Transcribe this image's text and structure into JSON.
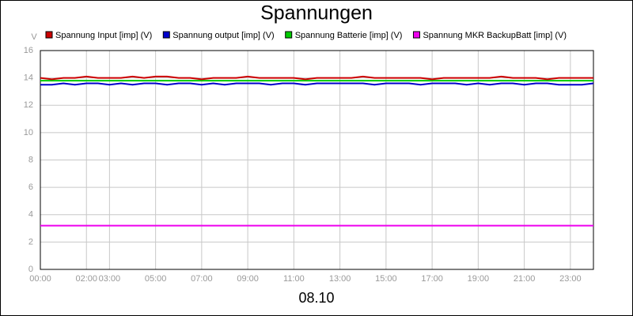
{
  "chart_data": {
    "type": "line",
    "title": "Spannungen",
    "ylabel": "V",
    "xlabel": "08.10",
    "x": [
      0,
      0.5,
      1,
      1.5,
      2,
      2.5,
      3,
      3.5,
      4,
      4.5,
      5,
      5.5,
      6,
      6.5,
      7,
      7.5,
      8,
      8.5,
      9,
      9.5,
      10,
      10.5,
      11,
      11.5,
      12,
      12.5,
      13,
      13.5,
      14,
      14.5,
      15,
      15.5,
      16,
      16.5,
      17,
      17.5,
      18,
      18.5,
      19,
      19.5,
      20,
      20.5,
      21,
      21.5,
      22,
      22.5,
      23,
      23.5,
      24
    ],
    "xlim": [
      0,
      24
    ],
    "xticks": [
      {
        "value": 0,
        "label": "00:00"
      },
      {
        "value": 2,
        "label": "02:00"
      },
      {
        "value": 3,
        "label": "03:00"
      },
      {
        "value": 5,
        "label": "05:00"
      },
      {
        "value": 7,
        "label": "07:00"
      },
      {
        "value": 9,
        "label": "09:00"
      },
      {
        "value": 11,
        "label": "11:00"
      },
      {
        "value": 13,
        "label": "13:00"
      },
      {
        "value": 15,
        "label": "15:00"
      },
      {
        "value": 17,
        "label": "17:00"
      },
      {
        "value": 19,
        "label": "19:00"
      },
      {
        "value": 21,
        "label": "21:00"
      },
      {
        "value": 23,
        "label": "23:00"
      }
    ],
    "ylim": [
      0,
      16
    ],
    "yticks": [
      0,
      2,
      4,
      6,
      8,
      10,
      12,
      14,
      16
    ],
    "grid": true,
    "legend": "top",
    "series": [
      {
        "name": "Spannung Input [imp] (V)",
        "color": "#cc0000",
        "values": [
          14.0,
          13.9,
          14.0,
          14.0,
          14.1,
          14.0,
          14.0,
          14.0,
          14.1,
          14.0,
          14.1,
          14.1,
          14.0,
          14.0,
          13.9,
          14.0,
          14.0,
          14.0,
          14.1,
          14.0,
          14.0,
          14.0,
          14.0,
          13.9,
          14.0,
          14.0,
          14.0,
          14.0,
          14.1,
          14.0,
          14.0,
          14.0,
          14.0,
          14.0,
          13.9,
          14.0,
          14.0,
          14.0,
          14.0,
          14.0,
          14.1,
          14.0,
          14.0,
          14.0,
          13.9,
          14.0,
          14.0,
          14.0,
          14.0
        ]
      },
      {
        "name": "Spannung output [imp] (V)",
        "color": "#0000cc",
        "values": [
          13.5,
          13.5,
          13.6,
          13.5,
          13.6,
          13.6,
          13.5,
          13.6,
          13.5,
          13.6,
          13.6,
          13.5,
          13.6,
          13.6,
          13.5,
          13.6,
          13.5,
          13.6,
          13.6,
          13.6,
          13.5,
          13.6,
          13.6,
          13.5,
          13.6,
          13.6,
          13.6,
          13.6,
          13.6,
          13.5,
          13.6,
          13.6,
          13.6,
          13.5,
          13.6,
          13.6,
          13.6,
          13.5,
          13.6,
          13.5,
          13.6,
          13.6,
          13.5,
          13.6,
          13.6,
          13.5,
          13.5,
          13.5,
          13.6
        ]
      },
      {
        "name": "Spannung Batterie [imp] (V)",
        "color": "#00cc00",
        "values": [
          13.8,
          13.8,
          13.8,
          13.8,
          13.8,
          13.8,
          13.8,
          13.8,
          13.8,
          13.8,
          13.8,
          13.8,
          13.8,
          13.8,
          13.8,
          13.8,
          13.8,
          13.8,
          13.8,
          13.8,
          13.8,
          13.8,
          13.8,
          13.8,
          13.8,
          13.8,
          13.8,
          13.8,
          13.8,
          13.8,
          13.8,
          13.8,
          13.8,
          13.8,
          13.8,
          13.8,
          13.8,
          13.8,
          13.8,
          13.8,
          13.8,
          13.8,
          13.8,
          13.8,
          13.8,
          13.8,
          13.8,
          13.8,
          13.8
        ]
      },
      {
        "name": "Spannung MKR BackupBatt [imp] (V)",
        "color": "#ee00ee",
        "values": [
          3.2,
          3.2,
          3.2,
          3.2,
          3.2,
          3.2,
          3.2,
          3.2,
          3.2,
          3.2,
          3.2,
          3.2,
          3.2,
          3.2,
          3.2,
          3.2,
          3.2,
          3.2,
          3.2,
          3.2,
          3.2,
          3.2,
          3.2,
          3.2,
          3.2,
          3.2,
          3.2,
          3.2,
          3.2,
          3.2,
          3.2,
          3.2,
          3.2,
          3.2,
          3.2,
          3.2,
          3.2,
          3.2,
          3.2,
          3.2,
          3.2,
          3.2,
          3.2,
          3.2,
          3.2,
          3.2,
          3.2,
          3.2,
          3.2
        ]
      }
    ]
  }
}
